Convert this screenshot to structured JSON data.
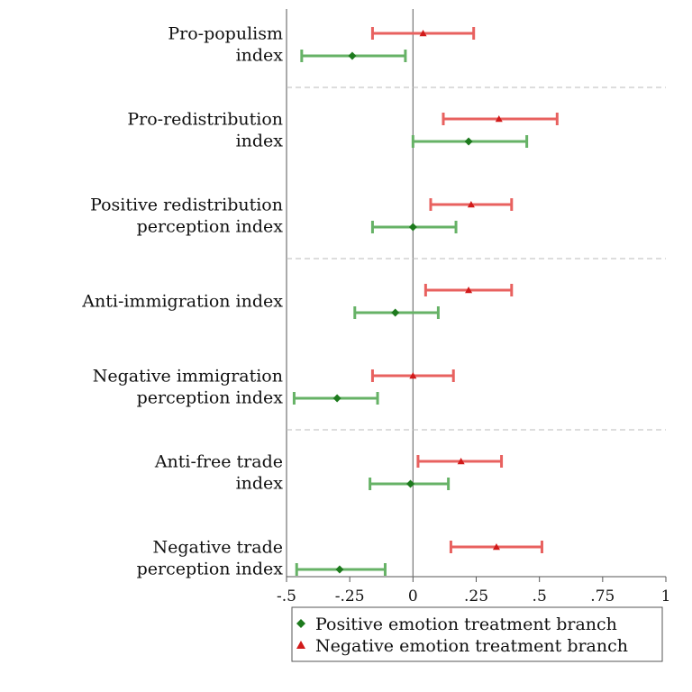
{
  "chart_data": {
    "type": "forest",
    "xlim": [
      -0.5,
      1.0
    ],
    "x_ticks": [
      -0.5,
      -0.25,
      0,
      0.25,
      0.5,
      0.75,
      1
    ],
    "x_tick_labels": [
      "-.5",
      "-.25",
      "0",
      ".25",
      ".5",
      ".75",
      "1"
    ],
    "reference_line": 0,
    "colors": {
      "negative_ci": "#e8615f",
      "negative_marker": "#d11a1a",
      "positive_ci": "#66b266",
      "positive_marker": "#1d7a1d",
      "separator": "#bbbbbb",
      "axis": "#555555"
    },
    "legend": {
      "position": "bottom",
      "entries": [
        {
          "label": "Positive emotion treatment branch",
          "marker": "diamond",
          "series": "positive"
        },
        {
          "label": "Negative emotion treatment branch",
          "marker": "triangle",
          "series": "negative"
        }
      ]
    },
    "groups": [
      {
        "label_lines": [
          "Pro-populism",
          "index"
        ],
        "negative": {
          "estimate": 0.04,
          "ci": [
            -0.16,
            0.24
          ]
        },
        "positive": {
          "estimate": -0.24,
          "ci": [
            -0.44,
            -0.03
          ]
        },
        "separator_after": true
      },
      {
        "label_lines": [
          "Pro-redistribution",
          "index"
        ],
        "negative": {
          "estimate": 0.34,
          "ci": [
            0.12,
            0.57
          ]
        },
        "positive": {
          "estimate": 0.22,
          "ci": [
            0.0,
            0.45
          ]
        },
        "separator_after": false
      },
      {
        "label_lines": [
          "Positive redistribution",
          "perception index"
        ],
        "negative": {
          "estimate": 0.23,
          "ci": [
            0.07,
            0.39
          ]
        },
        "positive": {
          "estimate": 0.0,
          "ci": [
            -0.16,
            0.17
          ]
        },
        "separator_after": true
      },
      {
        "label_lines": [
          "Anti-immigration index"
        ],
        "negative": {
          "estimate": 0.22,
          "ci": [
            0.05,
            0.39
          ]
        },
        "positive": {
          "estimate": -0.07,
          "ci": [
            -0.23,
            0.1
          ]
        },
        "separator_after": false
      },
      {
        "label_lines": [
          "Negative immigration",
          "perception index"
        ],
        "negative": {
          "estimate": 0.0,
          "ci": [
            -0.16,
            0.16
          ]
        },
        "positive": {
          "estimate": -0.3,
          "ci": [
            -0.47,
            -0.14
          ]
        },
        "separator_after": true
      },
      {
        "label_lines": [
          "Anti-free trade",
          "index"
        ],
        "negative": {
          "estimate": 0.19,
          "ci": [
            0.02,
            0.35
          ]
        },
        "positive": {
          "estimate": -0.01,
          "ci": [
            -0.17,
            0.14
          ]
        },
        "separator_after": false
      },
      {
        "label_lines": [
          "Negative trade",
          "perception index"
        ],
        "negative": {
          "estimate": 0.33,
          "ci": [
            0.15,
            0.51
          ]
        },
        "positive": {
          "estimate": -0.29,
          "ci": [
            -0.46,
            -0.11
          ]
        },
        "separator_after": false
      }
    ]
  }
}
